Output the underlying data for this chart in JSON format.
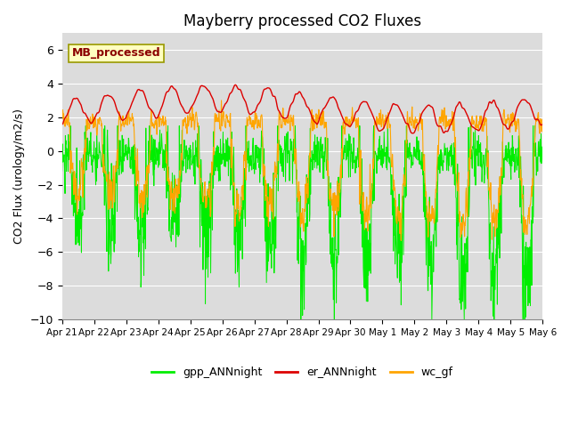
{
  "title": "Mayberry processed CO2 Fluxes",
  "ylabel": "CO2 Flux (urology/m2/s)",
  "ylim": [
    -10,
    7
  ],
  "yticks": [
    -10,
    -8,
    -6,
    -4,
    -2,
    0,
    2,
    4,
    6
  ],
  "background_color": "#dcdcdc",
  "legend_labels": [
    "gpp_ANNnight",
    "er_ANNnight",
    "wc_gf"
  ],
  "line_colors": {
    "gpp": "#00ee00",
    "er": "#dd0000",
    "wc": "#ffa500"
  },
  "inset_label": "MB_processed",
  "inset_text_color": "#8b0000",
  "inset_box_color": "#ffffc0",
  "date_labels": [
    "Apr 21",
    "Apr 22",
    "Apr 23",
    "Apr 24",
    "Apr 25",
    "Apr 26",
    "Apr 27",
    "Apr 28",
    "Apr 29",
    "Apr 30",
    "May 1",
    "May 2",
    "May 3",
    "May 4",
    "May 5",
    "May 6"
  ],
  "n_points_per_day": 96,
  "n_days": 15
}
